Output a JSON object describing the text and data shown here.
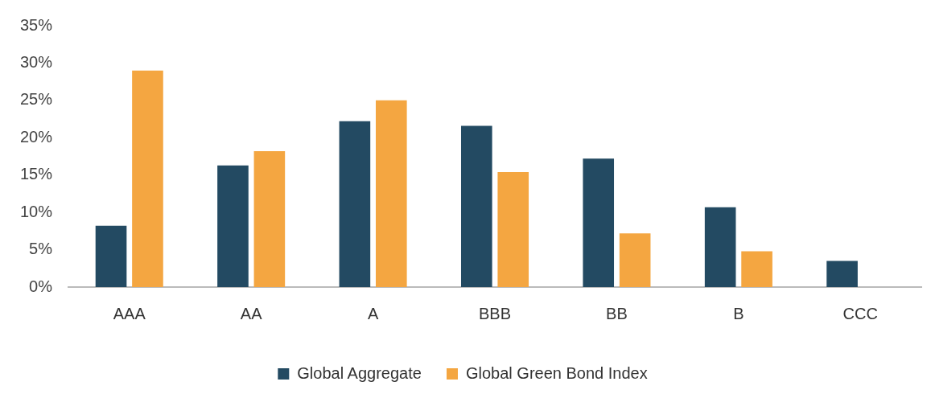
{
  "chart_data": {
    "type": "bar",
    "categories": [
      "AAA",
      "AA",
      "A",
      "BBB",
      "BB",
      "B",
      "CCC"
    ],
    "series": [
      {
        "name": "Global Aggregate",
        "color": "#234a62",
        "values": [
          8.2,
          16.3,
          22.2,
          21.6,
          17.2,
          10.7,
          3.5
        ]
      },
      {
        "name": "Global Green Bond Index",
        "color": "#f4a641",
        "values": [
          29.0,
          18.2,
          25.0,
          15.4,
          7.2,
          4.8,
          null
        ]
      }
    ],
    "ylim": [
      0,
      35
    ],
    "yticks": [
      {
        "value": 0,
        "label": "0%"
      },
      {
        "value": 5,
        "label": "5%"
      },
      {
        "value": 10,
        "label": "10%"
      },
      {
        "value": 15,
        "label": "15%"
      },
      {
        "value": 20,
        "label": "20%"
      },
      {
        "value": 25,
        "label": "25%"
      },
      {
        "value": 30,
        "label": "30%"
      },
      {
        "value": 35,
        "label": "35%"
      }
    ],
    "grid": false,
    "legend": "bottom"
  }
}
